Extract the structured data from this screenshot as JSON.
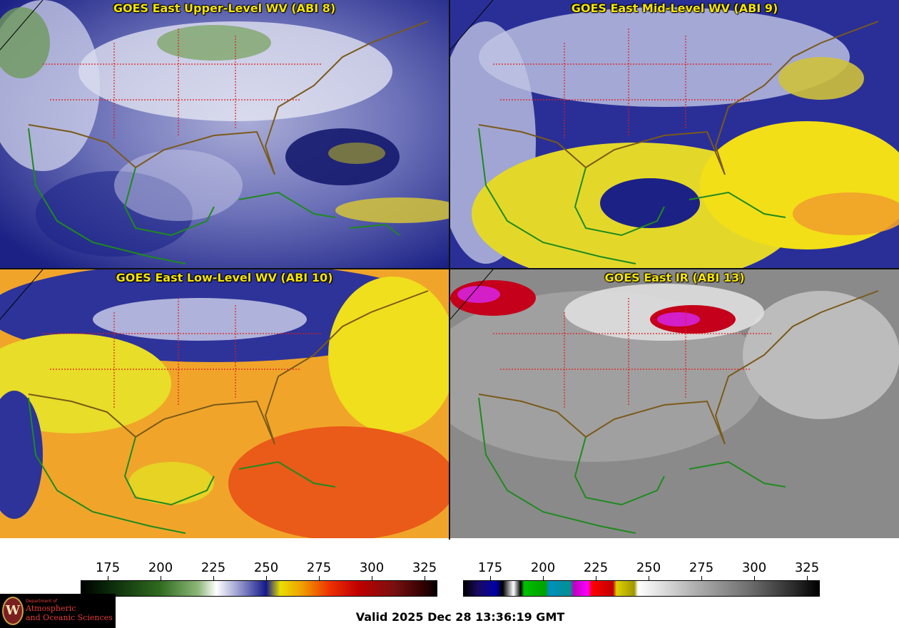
{
  "panels": [
    {
      "title": "GOES East Upper-Level WV (ABI 8)",
      "scheme": "wv-upper"
    },
    {
      "title": "GOES East Mid-Level WV (ABI 9)",
      "scheme": "wv-mid"
    },
    {
      "title": "GOES East Low-Level WV (ABI 10)",
      "scheme": "wv-low"
    },
    {
      "title": "GOES East IR (ABI 13)",
      "scheme": "ir"
    }
  ],
  "colorbars": [
    {
      "ticks": [
        "175",
        "200",
        "225",
        "250",
        "275",
        "300",
        "325"
      ]
    },
    {
      "ticks": [
        "175",
        "200",
        "225",
        "250",
        "275",
        "300",
        "325"
      ]
    }
  ],
  "valid_time": "Valid 2025 Dec 28 13:36:19 GMT",
  "logo": {
    "small": "Department of",
    "line1": "Atmospheric",
    "line2": "and Oceanic Sciences",
    "seal_letter": "W"
  },
  "colors": {
    "coastline": "#1f8a1f",
    "country": "#7a5a1a",
    "state_border": "#e11c1c",
    "title": "#f5e400"
  }
}
